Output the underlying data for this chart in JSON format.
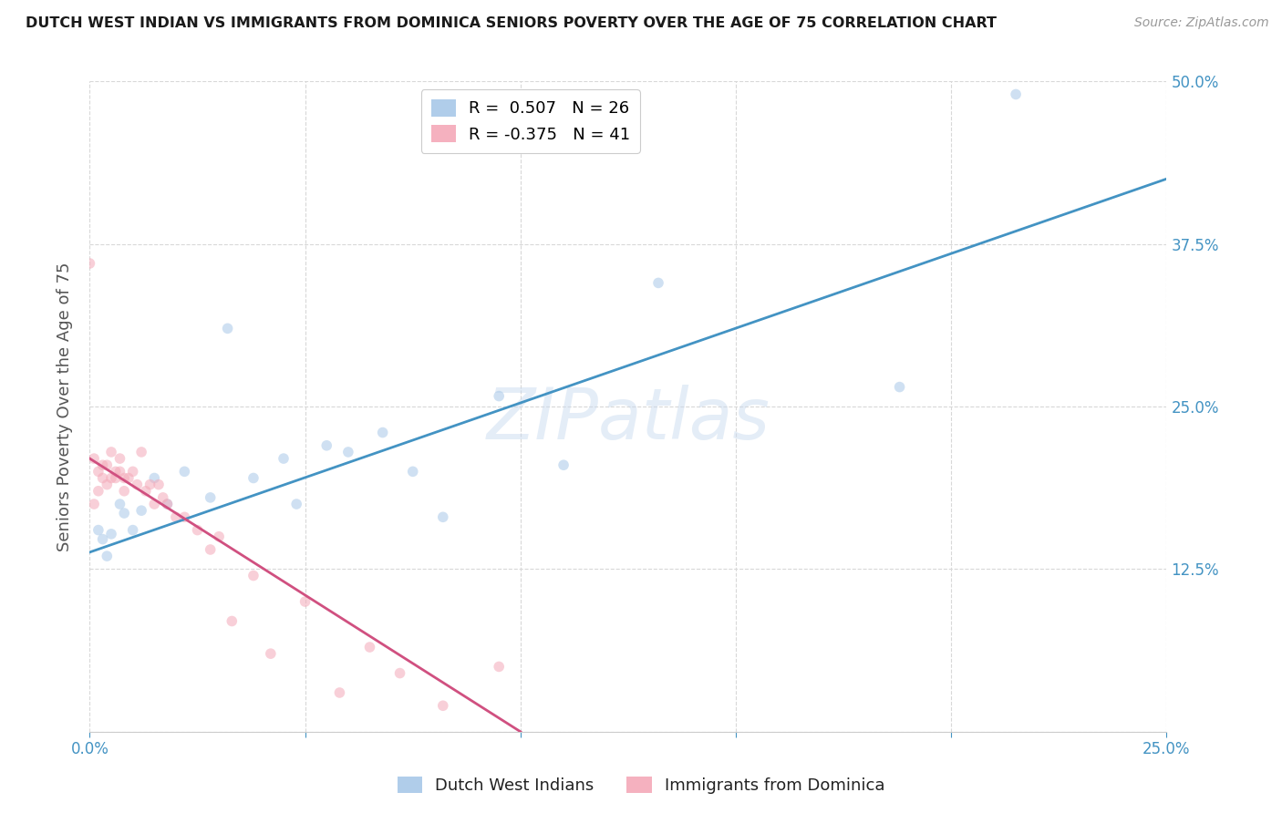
{
  "title": "DUTCH WEST INDIAN VS IMMIGRANTS FROM DOMINICA SENIORS POVERTY OVER THE AGE OF 75 CORRELATION CHART",
  "source": "Source: ZipAtlas.com",
  "ylabel": "Seniors Poverty Over the Age of 75",
  "xlim": [
    0.0,
    0.25
  ],
  "ylim": [
    0.0,
    0.5
  ],
  "xticks": [
    0.0,
    0.05,
    0.1,
    0.15,
    0.2,
    0.25
  ],
  "yticks": [
    0.0,
    0.125,
    0.25,
    0.375,
    0.5
  ],
  "xtick_labels": [
    "0.0%",
    "",
    "",
    "",
    "",
    "25.0%"
  ],
  "ytick_labels_right": [
    "",
    "12.5%",
    "25.0%",
    "37.5%",
    "50.0%"
  ],
  "legend1_label": "R =  0.507   N = 26",
  "legend2_label": "R = -0.375   N = 41",
  "legend1_color": "#a8c8e8",
  "legend2_color": "#f4a9b8",
  "watermark": "ZIPatlas",
  "blue_scatter_x": [
    0.002,
    0.003,
    0.004,
    0.005,
    0.007,
    0.008,
    0.01,
    0.012,
    0.015,
    0.018,
    0.022,
    0.028,
    0.032,
    0.038,
    0.045,
    0.048,
    0.055,
    0.06,
    0.068,
    0.075,
    0.082,
    0.095,
    0.11,
    0.132,
    0.188,
    0.215
  ],
  "blue_scatter_y": [
    0.155,
    0.148,
    0.135,
    0.152,
    0.175,
    0.168,
    0.155,
    0.17,
    0.195,
    0.175,
    0.2,
    0.18,
    0.31,
    0.195,
    0.21,
    0.175,
    0.22,
    0.215,
    0.23,
    0.2,
    0.165,
    0.258,
    0.205,
    0.345,
    0.265,
    0.49
  ],
  "pink_scatter_x": [
    0.0,
    0.001,
    0.001,
    0.002,
    0.002,
    0.003,
    0.003,
    0.004,
    0.004,
    0.005,
    0.005,
    0.006,
    0.006,
    0.007,
    0.007,
    0.008,
    0.008,
    0.009,
    0.01,
    0.011,
    0.012,
    0.013,
    0.014,
    0.015,
    0.016,
    0.017,
    0.018,
    0.02,
    0.022,
    0.025,
    0.028,
    0.03,
    0.033,
    0.038,
    0.042,
    0.05,
    0.058,
    0.065,
    0.072,
    0.082,
    0.095
  ],
  "pink_scatter_y": [
    0.36,
    0.21,
    0.175,
    0.2,
    0.185,
    0.205,
    0.195,
    0.19,
    0.205,
    0.195,
    0.215,
    0.2,
    0.195,
    0.21,
    0.2,
    0.195,
    0.185,
    0.195,
    0.2,
    0.19,
    0.215,
    0.185,
    0.19,
    0.175,
    0.19,
    0.18,
    0.175,
    0.165,
    0.165,
    0.155,
    0.14,
    0.15,
    0.085,
    0.12,
    0.06,
    0.1,
    0.03,
    0.065,
    0.045,
    0.02,
    0.05
  ],
  "blue_line_x": [
    0.0,
    0.25
  ],
  "blue_line_y": [
    0.138,
    0.425
  ],
  "pink_line_x": [
    0.0,
    0.1
  ],
  "pink_line_y": [
    0.21,
    0.0
  ],
  "blue_line_color": "#4393c3",
  "pink_line_color": "#d05080",
  "grid_color": "#d8d8d8",
  "bg_color": "#ffffff",
  "scatter_alpha": 0.55,
  "scatter_size": 70,
  "bottom_legend1_label": "Dutch West Indians",
  "bottom_legend2_label": "Immigrants from Dominica"
}
